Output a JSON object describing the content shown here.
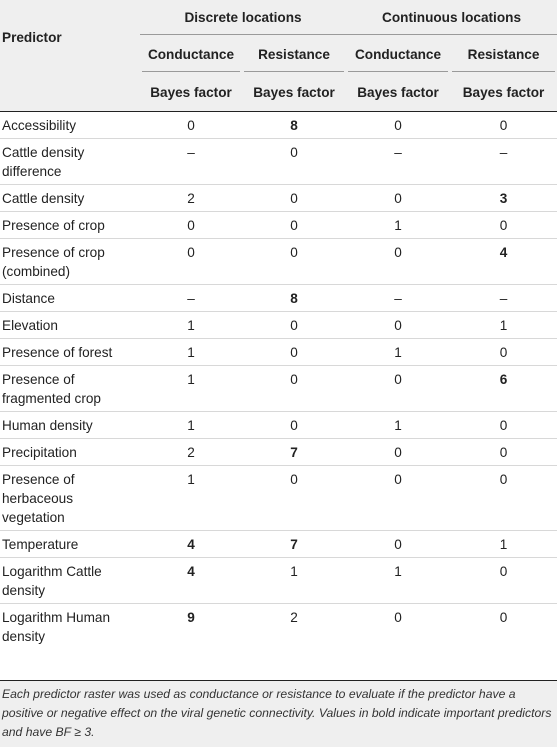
{
  "header": {
    "predictor": "Predictor",
    "groups": [
      "Discrete locations",
      "Continuous locations"
    ],
    "subheaders": [
      "Conductance",
      "Resistance",
      "Conductance",
      "Resistance"
    ],
    "metric": [
      "Bayes factor",
      "Bayes factor",
      "Bayes factor",
      "Bayes factor"
    ]
  },
  "rows": [
    {
      "predictor": "Accessibility",
      "values": [
        "0",
        "8",
        "0",
        "0"
      ],
      "bold": [
        false,
        true,
        false,
        false
      ]
    },
    {
      "predictor": "Cattle density difference",
      "values": [
        "–",
        "0",
        "–",
        "–"
      ],
      "bold": [
        false,
        false,
        false,
        false
      ]
    },
    {
      "predictor": "Cattle density",
      "values": [
        "2",
        "0",
        "0",
        "3"
      ],
      "bold": [
        false,
        false,
        false,
        true
      ]
    },
    {
      "predictor": "Presence of crop",
      "values": [
        "0",
        "0",
        "1",
        "0"
      ],
      "bold": [
        false,
        false,
        false,
        false
      ]
    },
    {
      "predictor": "Presence of crop (combined)",
      "values": [
        "0",
        "0",
        "0",
        "4"
      ],
      "bold": [
        false,
        false,
        false,
        true
      ]
    },
    {
      "predictor": "Distance",
      "values": [
        "–",
        "8",
        "–",
        "–"
      ],
      "bold": [
        false,
        true,
        false,
        false
      ]
    },
    {
      "predictor": "Elevation",
      "values": [
        "1",
        "0",
        "0",
        "1"
      ],
      "bold": [
        false,
        false,
        false,
        false
      ]
    },
    {
      "predictor": "Presence of forest",
      "values": [
        "1",
        "0",
        "1",
        "0"
      ],
      "bold": [
        false,
        false,
        false,
        false
      ]
    },
    {
      "predictor": "Presence of fragmented crop",
      "values": [
        "1",
        "0",
        "0",
        "6"
      ],
      "bold": [
        false,
        false,
        false,
        true
      ]
    },
    {
      "predictor": "Human density",
      "values": [
        "1",
        "0",
        "1",
        "0"
      ],
      "bold": [
        false,
        false,
        false,
        false
      ]
    },
    {
      "predictor": "Precipitation",
      "values": [
        "2",
        "7",
        "0",
        "0"
      ],
      "bold": [
        false,
        true,
        false,
        false
      ]
    },
    {
      "predictor": "Presence of herbaceous vegetation",
      "values": [
        "1",
        "0",
        "0",
        "0"
      ],
      "bold": [
        false,
        false,
        false,
        false
      ]
    },
    {
      "predictor": "Temperature",
      "values": [
        "4",
        "7",
        "0",
        "1"
      ],
      "bold": [
        true,
        true,
        false,
        false
      ]
    },
    {
      "predictor": "Logarithm Cattle density",
      "values": [
        "4",
        "1",
        "1",
        "0"
      ],
      "bold": [
        true,
        false,
        false,
        false
      ]
    },
    {
      "predictor": "Logarithm Human density",
      "values": [
        "9",
        "2",
        "0",
        "0"
      ],
      "bold": [
        true,
        false,
        false,
        false
      ]
    }
  ],
  "footnote": "Each predictor raster was used as conductance or resistance to evaluate if the predictor have a positive or negative effect on the viral genetic connectivity. Values in bold indicate important predictors and have BF ≥ 3."
}
